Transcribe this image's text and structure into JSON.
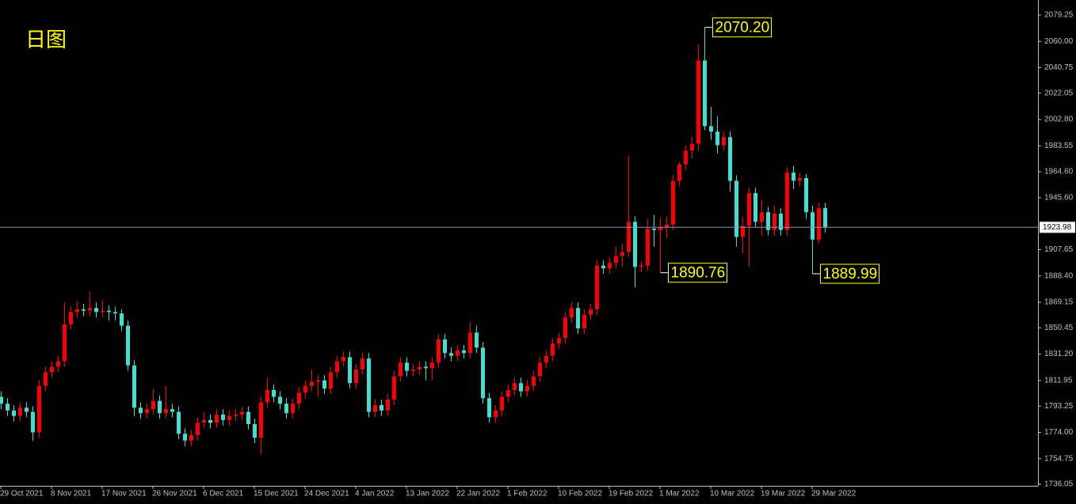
{
  "chart_data": {
    "type": "candlestick",
    "title": "日图",
    "up_color": "#ff0000",
    "down_color": "#40e0d0",
    "background": "#000000",
    "ylim": [
      1734.9,
      2090.25
    ],
    "yticks": [
      2079.25,
      {
        "value": 2060,
        "label": "2060.00"
      },
      2040.75,
      2022.05,
      {
        "value": 2002.8,
        "label": "2002.80"
      },
      1983.55,
      {
        "value": 1964.6,
        "label": "1964.60"
      },
      {
        "value": 1945.6,
        "label": "1945.60"
      },
      1907.65,
      {
        "value": 1888.4,
        "label": "1888.40"
      },
      1869.15,
      1850.45,
      {
        "value": 1831.2,
        "label": "1831.20"
      },
      1811.95,
      1793.25,
      {
        "value": 1774,
        "label": "1774.00"
      },
      1754.75,
      1736.05
    ],
    "xlim": [
      0,
      163
    ],
    "xticks": [
      {
        "value": 0,
        "label": "29 Oct 2021"
      },
      {
        "value": 8,
        "label": "8 Nov 2021"
      },
      {
        "value": 16,
        "label": "17 Nov 2021"
      },
      {
        "value": 24,
        "label": "26 Nov 2021"
      },
      {
        "value": 32,
        "label": "6 Dec 2021"
      },
      {
        "value": 40,
        "label": "15 Dec 2021"
      },
      {
        "value": 48,
        "label": "24 Dec 2021"
      },
      {
        "value": 56,
        "label": "4 Jan 2022"
      },
      {
        "value": 64,
        "label": "13 Jan 2022"
      },
      {
        "value": 72,
        "label": "22 Jan 2022"
      },
      {
        "value": 80,
        "label": "1 Feb 2022"
      },
      {
        "value": 88,
        "label": "10 Feb 2022"
      },
      {
        "value": 96,
        "label": "19 Feb 2022"
      },
      {
        "value": 104,
        "label": "1 Mar 2022"
      },
      {
        "value": 112,
        "label": "10 Mar 2022"
      },
      {
        "value": 120,
        "label": "19 Mar 2022"
      },
      {
        "value": 128,
        "label": "29 Mar 2022"
      }
    ],
    "current_price": 1923.98,
    "annotations": [
      {
        "value": 2070.2,
        "label": "2070.20"
      },
      {
        "value": 1890.76,
        "label": "1890.76"
      },
      {
        "value": 1889.99,
        "label": "1889.99"
      }
    ],
    "ohlc": [
      [
        1800,
        1804,
        1791,
        1795
      ],
      [
        1795,
        1799,
        1786,
        1790
      ],
      [
        1790,
        1794,
        1782,
        1786
      ],
      [
        1786,
        1796,
        1782,
        1792
      ],
      [
        1792,
        1796,
        1785,
        1789
      ],
      [
        1789,
        1793,
        1768,
        1774
      ],
      [
        1774,
        1812,
        1770,
        1808
      ],
      [
        1808,
        1822,
        1804,
        1818
      ],
      [
        1818,
        1826,
        1814,
        1822
      ],
      [
        1822,
        1830,
        1818,
        1826
      ],
      [
        1826,
        1869,
        1822,
        1853
      ],
      [
        1853,
        1866,
        1849,
        1862
      ],
      [
        1862,
        1870,
        1858,
        1864
      ],
      [
        1864,
        1868,
        1859,
        1863
      ],
      [
        1863,
        1877,
        1859,
        1865
      ],
      [
        1865,
        1869,
        1858,
        1862
      ],
      [
        1862,
        1871,
        1858,
        1863
      ],
      [
        1863,
        1867,
        1856,
        1862
      ],
      [
        1862,
        1866,
        1856,
        1861
      ],
      [
        1861,
        1864,
        1848,
        1852
      ],
      [
        1852,
        1856,
        1819,
        1823
      ],
      [
        1823,
        1827,
        1786,
        1792
      ],
      [
        1792,
        1796,
        1784,
        1788
      ],
      [
        1788,
        1795,
        1784,
        1791
      ],
      [
        1791,
        1806,
        1787,
        1797
      ],
      [
        1797,
        1801,
        1784,
        1788
      ],
      [
        1788,
        1808,
        1784,
        1791
      ],
      [
        1791,
        1795,
        1785,
        1789
      ],
      [
        1789,
        1793,
        1769,
        1773
      ],
      [
        1773,
        1777,
        1764,
        1768
      ],
      [
        1768,
        1776,
        1764,
        1772
      ],
      [
        1772,
        1785,
        1768,
        1781
      ],
      [
        1781,
        1789,
        1777,
        1783
      ],
      [
        1783,
        1787,
        1777,
        1781
      ],
      [
        1781,
        1791,
        1777,
        1787
      ],
      [
        1787,
        1791,
        1779,
        1783
      ],
      [
        1783,
        1790,
        1779,
        1786
      ],
      [
        1786,
        1791,
        1782,
        1787
      ],
      [
        1787,
        1793,
        1783,
        1789
      ],
      [
        1789,
        1793,
        1776,
        1780
      ],
      [
        1780,
        1784,
        1766,
        1770
      ],
      [
        1770,
        1800,
        1758,
        1796
      ],
      [
        1796,
        1814,
        1792,
        1805
      ],
      [
        1805,
        1809,
        1796,
        1800
      ],
      [
        1800,
        1804,
        1791,
        1795
      ],
      [
        1795,
        1799,
        1784,
        1788
      ],
      [
        1788,
        1799,
        1784,
        1795
      ],
      [
        1795,
        1807,
        1791,
        1803
      ],
      [
        1803,
        1812,
        1799,
        1808
      ],
      [
        1808,
        1820,
        1804,
        1811
      ],
      [
        1811,
        1816,
        1800,
        1812
      ],
      [
        1812,
        1816,
        1802,
        1806
      ],
      [
        1806,
        1822,
        1802,
        1818
      ],
      [
        1818,
        1830,
        1814,
        1826
      ],
      [
        1826,
        1833,
        1822,
        1829
      ],
      [
        1829,
        1833,
        1806,
        1810
      ],
      [
        1810,
        1824,
        1806,
        1820
      ],
      [
        1820,
        1832,
        1816,
        1828
      ],
      [
        1828,
        1832,
        1785,
        1789
      ],
      [
        1789,
        1798,
        1785,
        1794
      ],
      [
        1794,
        1798,
        1786,
        1790
      ],
      [
        1790,
        1802,
        1786,
        1798
      ],
      [
        1798,
        1819,
        1794,
        1815
      ],
      [
        1815,
        1829,
        1811,
        1825
      ],
      [
        1825,
        1829,
        1815,
        1819
      ],
      [
        1819,
        1824,
        1815,
        1820
      ],
      [
        1820,
        1826,
        1816,
        1822
      ],
      [
        1822,
        1826,
        1812,
        1821
      ],
      [
        1821,
        1829,
        1812,
        1825
      ],
      [
        1825,
        1846,
        1821,
        1842
      ],
      [
        1842,
        1846,
        1828,
        1832
      ],
      [
        1832,
        1836,
        1826,
        1830
      ],
      [
        1830,
        1838,
        1826,
        1834
      ],
      [
        1834,
        1838,
        1828,
        1832
      ],
      [
        1832,
        1855,
        1828,
        1847
      ],
      [
        1847,
        1852,
        1832,
        1836
      ],
      [
        1836,
        1840,
        1795,
        1799
      ],
      [
        1799,
        1803,
        1781,
        1785
      ],
      [
        1785,
        1794,
        1781,
        1790
      ],
      [
        1790,
        1804,
        1786,
        1800
      ],
      [
        1800,
        1809,
        1796,
        1805
      ],
      [
        1805,
        1814,
        1801,
        1810
      ],
      [
        1810,
        1814,
        1800,
        1804
      ],
      [
        1804,
        1812,
        1800,
        1808
      ],
      [
        1808,
        1819,
        1804,
        1815
      ],
      [
        1815,
        1829,
        1811,
        1825
      ],
      [
        1825,
        1834,
        1821,
        1830
      ],
      [
        1830,
        1843,
        1826,
        1839
      ],
      [
        1839,
        1847,
        1835,
        1843
      ],
      [
        1843,
        1862,
        1839,
        1858
      ],
      [
        1858,
        1869,
        1854,
        1865
      ],
      [
        1865,
        1869,
        1846,
        1850
      ],
      [
        1850,
        1864,
        1846,
        1860
      ],
      [
        1860,
        1868,
        1856,
        1864
      ],
      [
        1864,
        1900,
        1860,
        1896
      ],
      [
        1896,
        1900,
        1890,
        1894
      ],
      [
        1894,
        1902,
        1890,
        1898
      ],
      [
        1898,
        1910,
        1894,
        1903
      ],
      [
        1903,
        1912,
        1895,
        1906
      ],
      [
        1906,
        1976,
        1902,
        1928
      ],
      [
        1928,
        1932,
        1880,
        1895
      ],
      [
        1895,
        1899,
        1891,
        1896
      ],
      [
        1896,
        1930,
        1892,
        1923
      ],
      [
        1923,
        1933,
        1910,
        1922
      ],
      [
        1922,
        1931,
        1890.76,
        1924
      ],
      [
        1924,
        1932,
        1916,
        1926
      ],
      [
        1926,
        1962,
        1922,
        1958
      ],
      [
        1958,
        1972,
        1954,
        1970
      ],
      [
        1970,
        1984,
        1966,
        1980
      ],
      [
        1980,
        1990,
        1974,
        1985
      ],
      [
        1985,
        2058,
        1980,
        2046
      ],
      [
        2046,
        2070.2,
        1995,
        1998
      ],
      [
        1998,
        2012,
        1988,
        1994
      ],
      [
        1994,
        2005,
        1978,
        1984
      ],
      [
        1984,
        1994,
        1980,
        1990
      ],
      [
        1990,
        1994,
        1950,
        1958
      ],
      [
        1958,
        1962,
        1910,
        1917
      ],
      [
        1917,
        1932,
        1905,
        1925
      ],
      [
        1925,
        1953,
        1895,
        1949
      ],
      [
        1949,
        1953,
        1924,
        1928
      ],
      [
        1928,
        1944,
        1918,
        1935
      ],
      [
        1935,
        1939,
        1918,
        1922
      ],
      [
        1922,
        1940,
        1918,
        1934
      ],
      [
        1934,
        1938,
        1918,
        1922
      ],
      [
        1922,
        1968,
        1918,
        1964
      ],
      [
        1964,
        1969,
        1952,
        1958
      ],
      [
        1958,
        1964,
        1954,
        1960
      ],
      [
        1960,
        1963,
        1930,
        1935
      ],
      [
        1935,
        1940,
        1889.99,
        1915
      ],
      [
        1915,
        1942,
        1912,
        1938
      ],
      [
        1938,
        1942,
        1920,
        1923.98
      ]
    ]
  }
}
